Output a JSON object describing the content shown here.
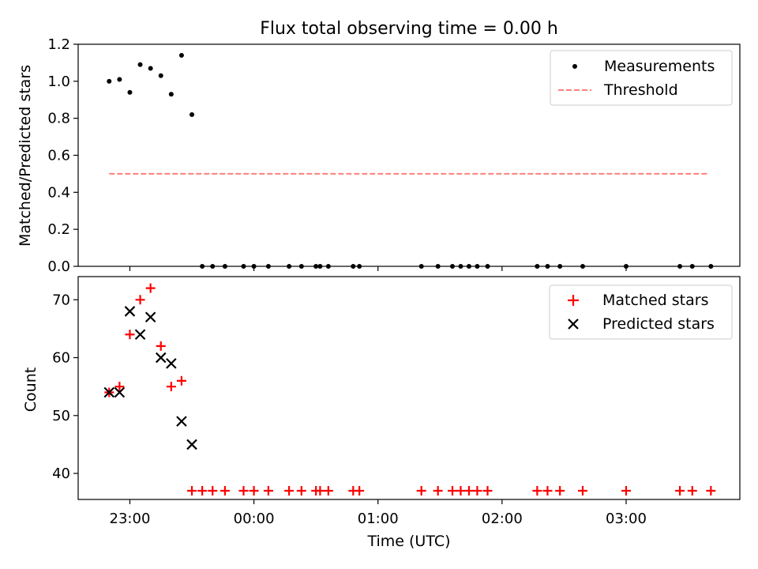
{
  "chart_data": [
    {
      "type": "scatter",
      "title": "Flux total observing time = 0.00 h",
      "xlabel": "",
      "ylabel": "Matched/Predicted stars",
      "xlim": [
        "22:35",
        "03:55"
      ],
      "ylim": [
        0,
        1.2
      ],
      "yticks": [
        "0.0",
        "0.2",
        "0.4",
        "0.6",
        "0.8",
        "1.0",
        "1.2"
      ],
      "xticks_labels_shown": false,
      "legend_position": "upper right",
      "series": [
        {
          "name": "Measurements",
          "marker": "dot",
          "color": "#000000",
          "points": [
            [
              "22:50",
              1.0
            ],
            [
              "22:55",
              1.01
            ],
            [
              "23:00",
              0.94
            ],
            [
              "23:05",
              1.09
            ],
            [
              "23:10",
              1.07
            ],
            [
              "23:15",
              1.03
            ],
            [
              "23:20",
              0.93
            ],
            [
              "23:25",
              1.14
            ],
            [
              "23:30",
              0.82
            ],
            [
              "23:35",
              0.0
            ],
            [
              "23:40",
              0.0
            ],
            [
              "23:46",
              0.0
            ],
            [
              "23:55",
              0.0
            ],
            [
              "24:00",
              0.0
            ],
            [
              "24:07",
              0.0
            ],
            [
              "24:17",
              0.0
            ],
            [
              "24:23",
              0.0
            ],
            [
              "24:30",
              0.0
            ],
            [
              "24:32",
              0.0
            ],
            [
              "24:36",
              0.0
            ],
            [
              "24:48",
              0.0
            ],
            [
              "24:51",
              0.0
            ],
            [
              "25:21",
              0.0
            ],
            [
              "25:29",
              0.0
            ],
            [
              "25:36",
              0.0
            ],
            [
              "25:40",
              0.0
            ],
            [
              "25:44",
              0.0
            ],
            [
              "25:48",
              0.0
            ],
            [
              "25:53",
              0.0
            ],
            [
              "26:17",
              0.0
            ],
            [
              "26:22",
              0.0
            ],
            [
              "26:28",
              0.0
            ],
            [
              "26:39",
              0.0
            ],
            [
              "27:00",
              0.0
            ],
            [
              "27:26",
              0.0
            ],
            [
              "27:32",
              0.0
            ],
            [
              "27:41",
              0.0
            ]
          ]
        },
        {
          "name": "Threshold",
          "marker": "dashed-line",
          "color": "#ff7f7f",
          "points": [
            [
              "22:50",
              0.5
            ],
            [
              "27:40",
              0.5
            ]
          ]
        }
      ]
    },
    {
      "type": "scatter",
      "title": "",
      "xlabel": "Time (UTC)",
      "ylabel": "Count",
      "xlim": [
        "22:35",
        "03:55"
      ],
      "ylim": [
        35.5,
        74
      ],
      "yticks": [
        "40",
        "50",
        "60",
        "70"
      ],
      "xticks": [
        "23:00",
        "00:00",
        "01:00",
        "02:00",
        "03:00"
      ],
      "legend_position": "upper right",
      "series": [
        {
          "name": "Matched stars",
          "marker": "plus",
          "color": "#ff0000",
          "points": [
            [
              "22:50",
              54
            ],
            [
              "22:55",
              55
            ],
            [
              "23:00",
              64
            ],
            [
              "23:05",
              70
            ],
            [
              "23:10",
              72
            ],
            [
              "23:15",
              62
            ],
            [
              "23:20",
              55
            ],
            [
              "23:25",
              56
            ],
            [
              "23:30",
              37
            ],
            [
              "23:35",
              37
            ],
            [
              "23:40",
              37
            ],
            [
              "23:46",
              37
            ],
            [
              "23:55",
              37
            ],
            [
              "24:00",
              37
            ],
            [
              "24:07",
              37
            ],
            [
              "24:17",
              37
            ],
            [
              "24:23",
              37
            ],
            [
              "24:30",
              37
            ],
            [
              "24:32",
              37
            ],
            [
              "24:36",
              37
            ],
            [
              "24:48",
              37
            ],
            [
              "24:51",
              37
            ],
            [
              "25:21",
              37
            ],
            [
              "25:29",
              37
            ],
            [
              "25:36",
              37
            ],
            [
              "25:40",
              37
            ],
            [
              "25:44",
              37
            ],
            [
              "25:48",
              37
            ],
            [
              "25:53",
              37
            ],
            [
              "26:17",
              37
            ],
            [
              "26:22",
              37
            ],
            [
              "26:28",
              37
            ],
            [
              "26:39",
              37
            ],
            [
              "27:00",
              37
            ],
            [
              "27:26",
              37
            ],
            [
              "27:32",
              37
            ],
            [
              "27:41",
              37
            ]
          ]
        },
        {
          "name": "Predicted stars",
          "marker": "x",
          "color": "#000000",
          "points": [
            [
              "22:50",
              54
            ],
            [
              "22:55",
              54
            ],
            [
              "23:00",
              68
            ],
            [
              "23:05",
              64
            ],
            [
              "23:10",
              67
            ],
            [
              "23:15",
              60
            ],
            [
              "23:20",
              59
            ],
            [
              "23:25",
              49
            ],
            [
              "23:30",
              45
            ]
          ]
        }
      ]
    }
  ]
}
